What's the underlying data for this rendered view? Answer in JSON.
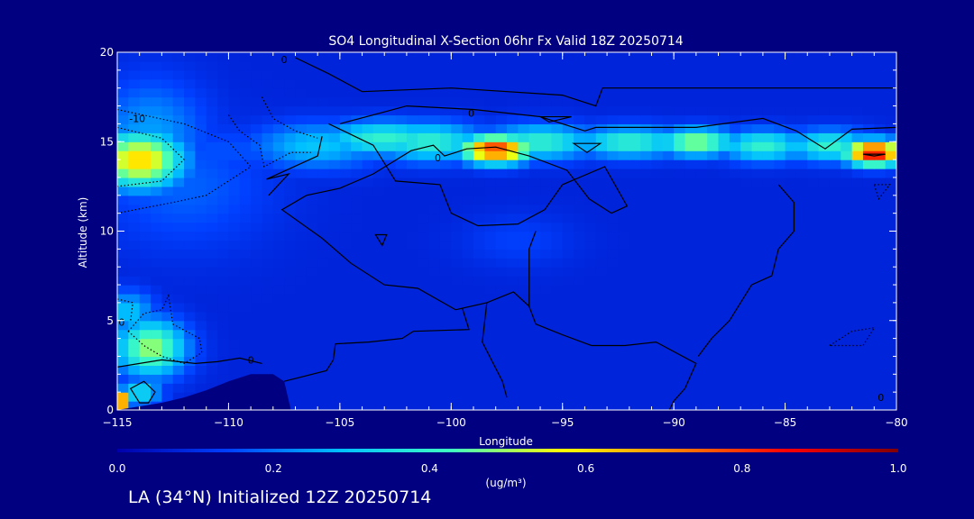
{
  "chart_data": {
    "type": "heatmap",
    "title": "SO4 Longitudinal X-Section 06hr  Fx Valid 18Z 20250714",
    "xlabel": "Longitude",
    "ylabel": "Altitude (km)",
    "xlim": [
      -115,
      -80
    ],
    "ylim": [
      0,
      20
    ],
    "x_ticks": [
      -115,
      -110,
      -105,
      -100,
      -95,
      -90,
      -85,
      -80
    ],
    "x_tick_labels": [
      "−115",
      "−110",
      "−105",
      "−100",
      "−95",
      "−90",
      "−85",
      "−80"
    ],
    "y_ticks": [
      0,
      5,
      10,
      15,
      20
    ],
    "y_tick_labels": [
      "0",
      "5",
      "10",
      "15",
      "20"
    ],
    "colorbar": {
      "range": [
        0.0,
        1.0
      ],
      "ticks": [
        0.0,
        0.2,
        0.4,
        0.6,
        0.8,
        1.0
      ],
      "tick_labels": [
        "0.0",
        "0.2",
        "0.4",
        "0.6",
        "0.8",
        "1.0"
      ],
      "unit_label": "(ug/m³)",
      "colors": [
        "#0000aa",
        "#0040ff",
        "#00c0ff",
        "#40ffc0",
        "#ffff00",
        "#ff8000",
        "#ff0000",
        "#800000"
      ]
    },
    "background_value": 0.08,
    "features": [
      {
        "lon": -114,
        "alt": 14.0,
        "value": 0.62,
        "sx": 2.0,
        "sy": 1.6
      },
      {
        "lon": -113.5,
        "alt": 15.5,
        "value": 0.25,
        "sx": 2.5,
        "sy": 3.0
      },
      {
        "lon": -112,
        "alt": 12.5,
        "value": 0.18,
        "sx": 4.0,
        "sy": 3.5
      },
      {
        "lon": -110,
        "alt": 14.5,
        "value": 0.16,
        "sx": 5.0,
        "sy": 1.5
      },
      {
        "lon": -106,
        "alt": 14.8,
        "value": 0.3,
        "sx": 3.0,
        "sy": 1.3
      },
      {
        "lon": -103,
        "alt": 15.2,
        "value": 0.4,
        "sx": 3.0,
        "sy": 1.0
      },
      {
        "lon": -101,
        "alt": 15.0,
        "value": 0.4,
        "sx": 2.5,
        "sy": 1.1
      },
      {
        "lon": -98.0,
        "alt": 14.6,
        "value": 0.8,
        "sx": 1.6,
        "sy": 0.8
      },
      {
        "lon": -96,
        "alt": 15.0,
        "value": 0.4,
        "sx": 2.5,
        "sy": 1.0
      },
      {
        "lon": -92,
        "alt": 15.0,
        "value": 0.4,
        "sx": 2.5,
        "sy": 0.9
      },
      {
        "lon": -89,
        "alt": 15.0,
        "value": 0.5,
        "sx": 1.8,
        "sy": 0.8
      },
      {
        "lon": -86,
        "alt": 14.8,
        "value": 0.4,
        "sx": 2.0,
        "sy": 0.9
      },
      {
        "lon": -81,
        "alt": 14.4,
        "value": 0.88,
        "sx": 1.3,
        "sy": 0.7
      },
      {
        "lon": -83,
        "alt": 14.8,
        "value": 0.4,
        "sx": 2.0,
        "sy": 0.9
      },
      {
        "lon": -97,
        "alt": 9.5,
        "value": 0.14,
        "sx": 2.5,
        "sy": 1.5
      },
      {
        "lon": -113.5,
        "alt": 3.5,
        "value": 0.5,
        "sx": 1.6,
        "sy": 1.6
      },
      {
        "lon": -114.5,
        "alt": 5.5,
        "value": 0.3,
        "sx": 1.2,
        "sy": 1.2
      },
      {
        "lon": -114.8,
        "alt": 0.5,
        "value": 0.95,
        "sx": 0.4,
        "sy": 0.4
      },
      {
        "lon": -114,
        "alt": 1.0,
        "value": 0.35,
        "sx": 1.0,
        "sy": 0.8
      }
    ],
    "terrain": [
      [
        -115,
        0
      ],
      [
        -113,
        0.4
      ],
      [
        -112,
        0.7
      ],
      [
        -111,
        1.1
      ],
      [
        -110,
        1.6
      ],
      [
        -109,
        2.0
      ],
      [
        -108,
        2.0
      ],
      [
        -107.5,
        1.6
      ],
      [
        -107.2,
        0
      ]
    ],
    "solid_contours": [
      {
        "points": [
          [
            -107,
            19.7
          ],
          [
            -105.5,
            18.8
          ],
          [
            -104,
            17.8
          ],
          [
            -100,
            18.0
          ],
          [
            -95,
            17.6
          ],
          [
            -93.5,
            17.0
          ],
          [
            -93.2,
            18.0
          ],
          [
            -80,
            18.0
          ]
        ],
        "closed": false
      },
      {
        "points": [
          [
            -105,
            16.0
          ],
          [
            -102,
            17.0
          ],
          [
            -99,
            16.8
          ],
          [
            -96,
            16.4
          ],
          [
            -94,
            15.6
          ],
          [
            -93.5,
            15.8
          ],
          [
            -89,
            15.8
          ],
          [
            -86,
            16.3
          ],
          [
            -84.5,
            15.6
          ],
          [
            -83.2,
            14.6
          ],
          [
            -82,
            15.7
          ],
          [
            -80,
            15.8
          ]
        ],
        "closed": false
      },
      {
        "points": [
          [
            -105.5,
            16.0
          ],
          [
            -103.5,
            14.8
          ],
          [
            -102.5,
            12.8
          ],
          [
            -100.5,
            12.6
          ],
          [
            -100.0,
            11.0
          ],
          [
            -98.8,
            10.3
          ],
          [
            -97.0,
            10.4
          ],
          [
            -95.8,
            11.2
          ],
          [
            -95.0,
            12.6
          ],
          [
            -93.1,
            13.6
          ],
          [
            -92.1,
            11.4
          ],
          [
            -92.8,
            11.0
          ],
          [
            -93.8,
            11.8
          ],
          [
            -94.8,
            13.4
          ],
          [
            -96.5,
            14.2
          ],
          [
            -98.0,
            14.7
          ],
          [
            -99.3,
            14.6
          ],
          [
            -100.3,
            14.2
          ],
          [
            -100.8,
            14.8
          ],
          [
            -101.8,
            14.5
          ],
          [
            -103.5,
            13.2
          ],
          [
            -105.0,
            12.4
          ],
          [
            -106.5,
            12.0
          ],
          [
            -107.6,
            11.2
          ],
          [
            -105.8,
            9.6
          ],
          [
            -104.5,
            8.2
          ],
          [
            -103.0,
            7.0
          ],
          [
            -101.5,
            6.8
          ],
          [
            -99.8,
            5.6
          ],
          [
            -98.4,
            6.0
          ],
          [
            -97.2,
            6.6
          ],
          [
            -96.5,
            5.8
          ],
          [
            -96.2,
            4.8
          ],
          [
            -95.0,
            4.2
          ],
          [
            -93.7,
            3.6
          ],
          [
            -92.2,
            3.6
          ],
          [
            -90.8,
            3.8
          ],
          [
            -89.0,
            2.6
          ],
          [
            -89.5,
            1.2
          ],
          [
            -90.0,
            0.5
          ],
          [
            -90.2,
            0
          ]
        ],
        "closed": false
      },
      {
        "points": [
          [
            -103.4,
            9.8
          ],
          [
            -102.9,
            9.8
          ],
          [
            -103.1,
            9.2
          ]
        ],
        "closed": true
      },
      {
        "points": [
          [
            -96.0,
            16.4
          ],
          [
            -94.6,
            16.4
          ],
          [
            -95.6,
            16.1
          ]
        ],
        "closed": true
      },
      {
        "points": [
          [
            -94.5,
            14.9
          ],
          [
            -93.3,
            14.9
          ],
          [
            -93.9,
            14.4
          ]
        ],
        "closed": true
      },
      {
        "points": [
          [
            -81.5,
            14.3
          ],
          [
            -80.5,
            14.3
          ],
          [
            -81.0,
            14.2
          ]
        ],
        "closed": true
      },
      {
        "points": [
          [
            -114.0,
            0.4
          ],
          [
            -114.4,
            1.2
          ],
          [
            -113.8,
            1.6
          ],
          [
            -113.3,
            1.0
          ],
          [
            -113.6,
            0.4
          ]
        ],
        "closed": true
      },
      {
        "points": [
          [
            -115,
            2.4
          ],
          [
            -113,
            2.8
          ],
          [
            -111.5,
            2.6
          ],
          [
            -110.5,
            2.7
          ],
          [
            -109.5,
            2.9
          ],
          [
            -108.5,
            2.6
          ]
        ],
        "closed": false
      },
      {
        "points": [
          [
            -108.2,
            12.0
          ],
          [
            -107.3,
            13.2
          ],
          [
            -108.3,
            12.9
          ],
          [
            -106.0,
            14.2
          ],
          [
            -105.8,
            15.3
          ]
        ],
        "closed": false
      },
      {
        "points": [
          [
            -99.5,
            5.7
          ],
          [
            -99.2,
            4.5
          ],
          [
            -101.7,
            4.4
          ],
          [
            -102.2,
            4.0
          ],
          [
            -103.7,
            3.8
          ],
          [
            -105.2,
            3.7
          ],
          [
            -105.3,
            2.8
          ],
          [
            -105.6,
            2.2
          ],
          [
            -107.5,
            1.6
          ]
        ],
        "closed": false
      },
      {
        "points": [
          [
            -98.4,
            6.0
          ],
          [
            -98.6,
            3.8
          ],
          [
            -97.7,
            1.6
          ],
          [
            -97.5,
            0.7
          ]
        ],
        "closed": false
      },
      {
        "points": [
          [
            -85.3,
            12.6
          ],
          [
            -84.6,
            11.6
          ],
          [
            -84.6,
            10.0
          ],
          [
            -85.3,
            9.0
          ],
          [
            -85.6,
            7.5
          ],
          [
            -86.5,
            7.0
          ],
          [
            -87.0,
            6.0
          ],
          [
            -87.5,
            5.0
          ],
          [
            -88.3,
            4.0
          ],
          [
            -88.9,
            3.0
          ]
        ],
        "closed": false
      },
      {
        "points": [
          [
            -96.5,
            5.8
          ],
          [
            -96.5,
            9.0
          ],
          [
            -96.2,
            10.0
          ]
        ],
        "closed": false
      }
    ],
    "dotted_contours": [
      {
        "points": [
          [
            -115,
            16.8
          ],
          [
            -112,
            16.0
          ],
          [
            -110,
            15.0
          ],
          [
            -109,
            13.6
          ],
          [
            -111,
            12.0
          ],
          [
            -112.5,
            11.6
          ],
          [
            -115,
            11.0
          ]
        ],
        "closed": false
      },
      {
        "points": [
          [
            -115,
            15.8
          ],
          [
            -113,
            15.2
          ],
          [
            -112,
            14.0
          ],
          [
            -113,
            12.8
          ],
          [
            -115,
            12.5
          ]
        ],
        "closed": false
      },
      {
        "points": [
          [
            -110,
            16.5
          ],
          [
            -109.5,
            15.6
          ],
          [
            -108.6,
            14.8
          ],
          [
            -108.4,
            13.6
          ],
          [
            -107.2,
            14.4
          ],
          [
            -106.3,
            14.4
          ]
        ],
        "closed": false
      },
      {
        "points": [
          [
            -108.5,
            17.5
          ],
          [
            -108.0,
            16.3
          ],
          [
            -107.0,
            15.6
          ],
          [
            -106.0,
            15.2
          ]
        ],
        "closed": false
      },
      {
        "points": [
          [
            -114.5,
            4.4
          ],
          [
            -113.8,
            5.4
          ],
          [
            -113.0,
            5.6
          ],
          [
            -112.7,
            6.4
          ],
          [
            -112.5,
            4.8
          ],
          [
            -111.3,
            4.0
          ],
          [
            -111.2,
            3.2
          ],
          [
            -112.0,
            2.6
          ],
          [
            -113.0,
            3.0
          ],
          [
            -113.8,
            3.6
          ],
          [
            -114.5,
            4.4
          ]
        ],
        "closed": true
      },
      {
        "points": [
          [
            -115,
            6.2
          ],
          [
            -114.3,
            6.0
          ],
          [
            -114.4,
            5.0
          ]
        ],
        "closed": false
      },
      {
        "points": [
          [
            -83.0,
            3.6
          ],
          [
            -82.0,
            4.4
          ],
          [
            -81.0,
            4.6
          ],
          [
            -81.5,
            3.6
          ],
          [
            -83.0,
            3.6
          ]
        ],
        "closed": true
      },
      {
        "points": [
          [
            -81.0,
            12.6
          ],
          [
            -80.3,
            12.6
          ],
          [
            -80.8,
            11.8
          ]
        ],
        "closed": true
      }
    ],
    "contour_labels": [
      {
        "text": "0",
        "lon": -107.5,
        "alt": 19.6
      },
      {
        "text": "-10",
        "lon": -114.1,
        "alt": 16.3
      },
      {
        "text": "0",
        "lon": -99.1,
        "alt": 16.6
      },
      {
        "text": "0",
        "lon": -100.6,
        "alt": 14.1
      },
      {
        "text": "0",
        "lon": -114.8,
        "alt": 4.9
      },
      {
        "text": "0",
        "lon": -109.0,
        "alt": 2.8
      },
      {
        "text": "0",
        "lon": -80.7,
        "alt": 0.7
      }
    ]
  },
  "footer": {
    "caption": "LA (34°N) Initialized 12Z 20250714"
  }
}
